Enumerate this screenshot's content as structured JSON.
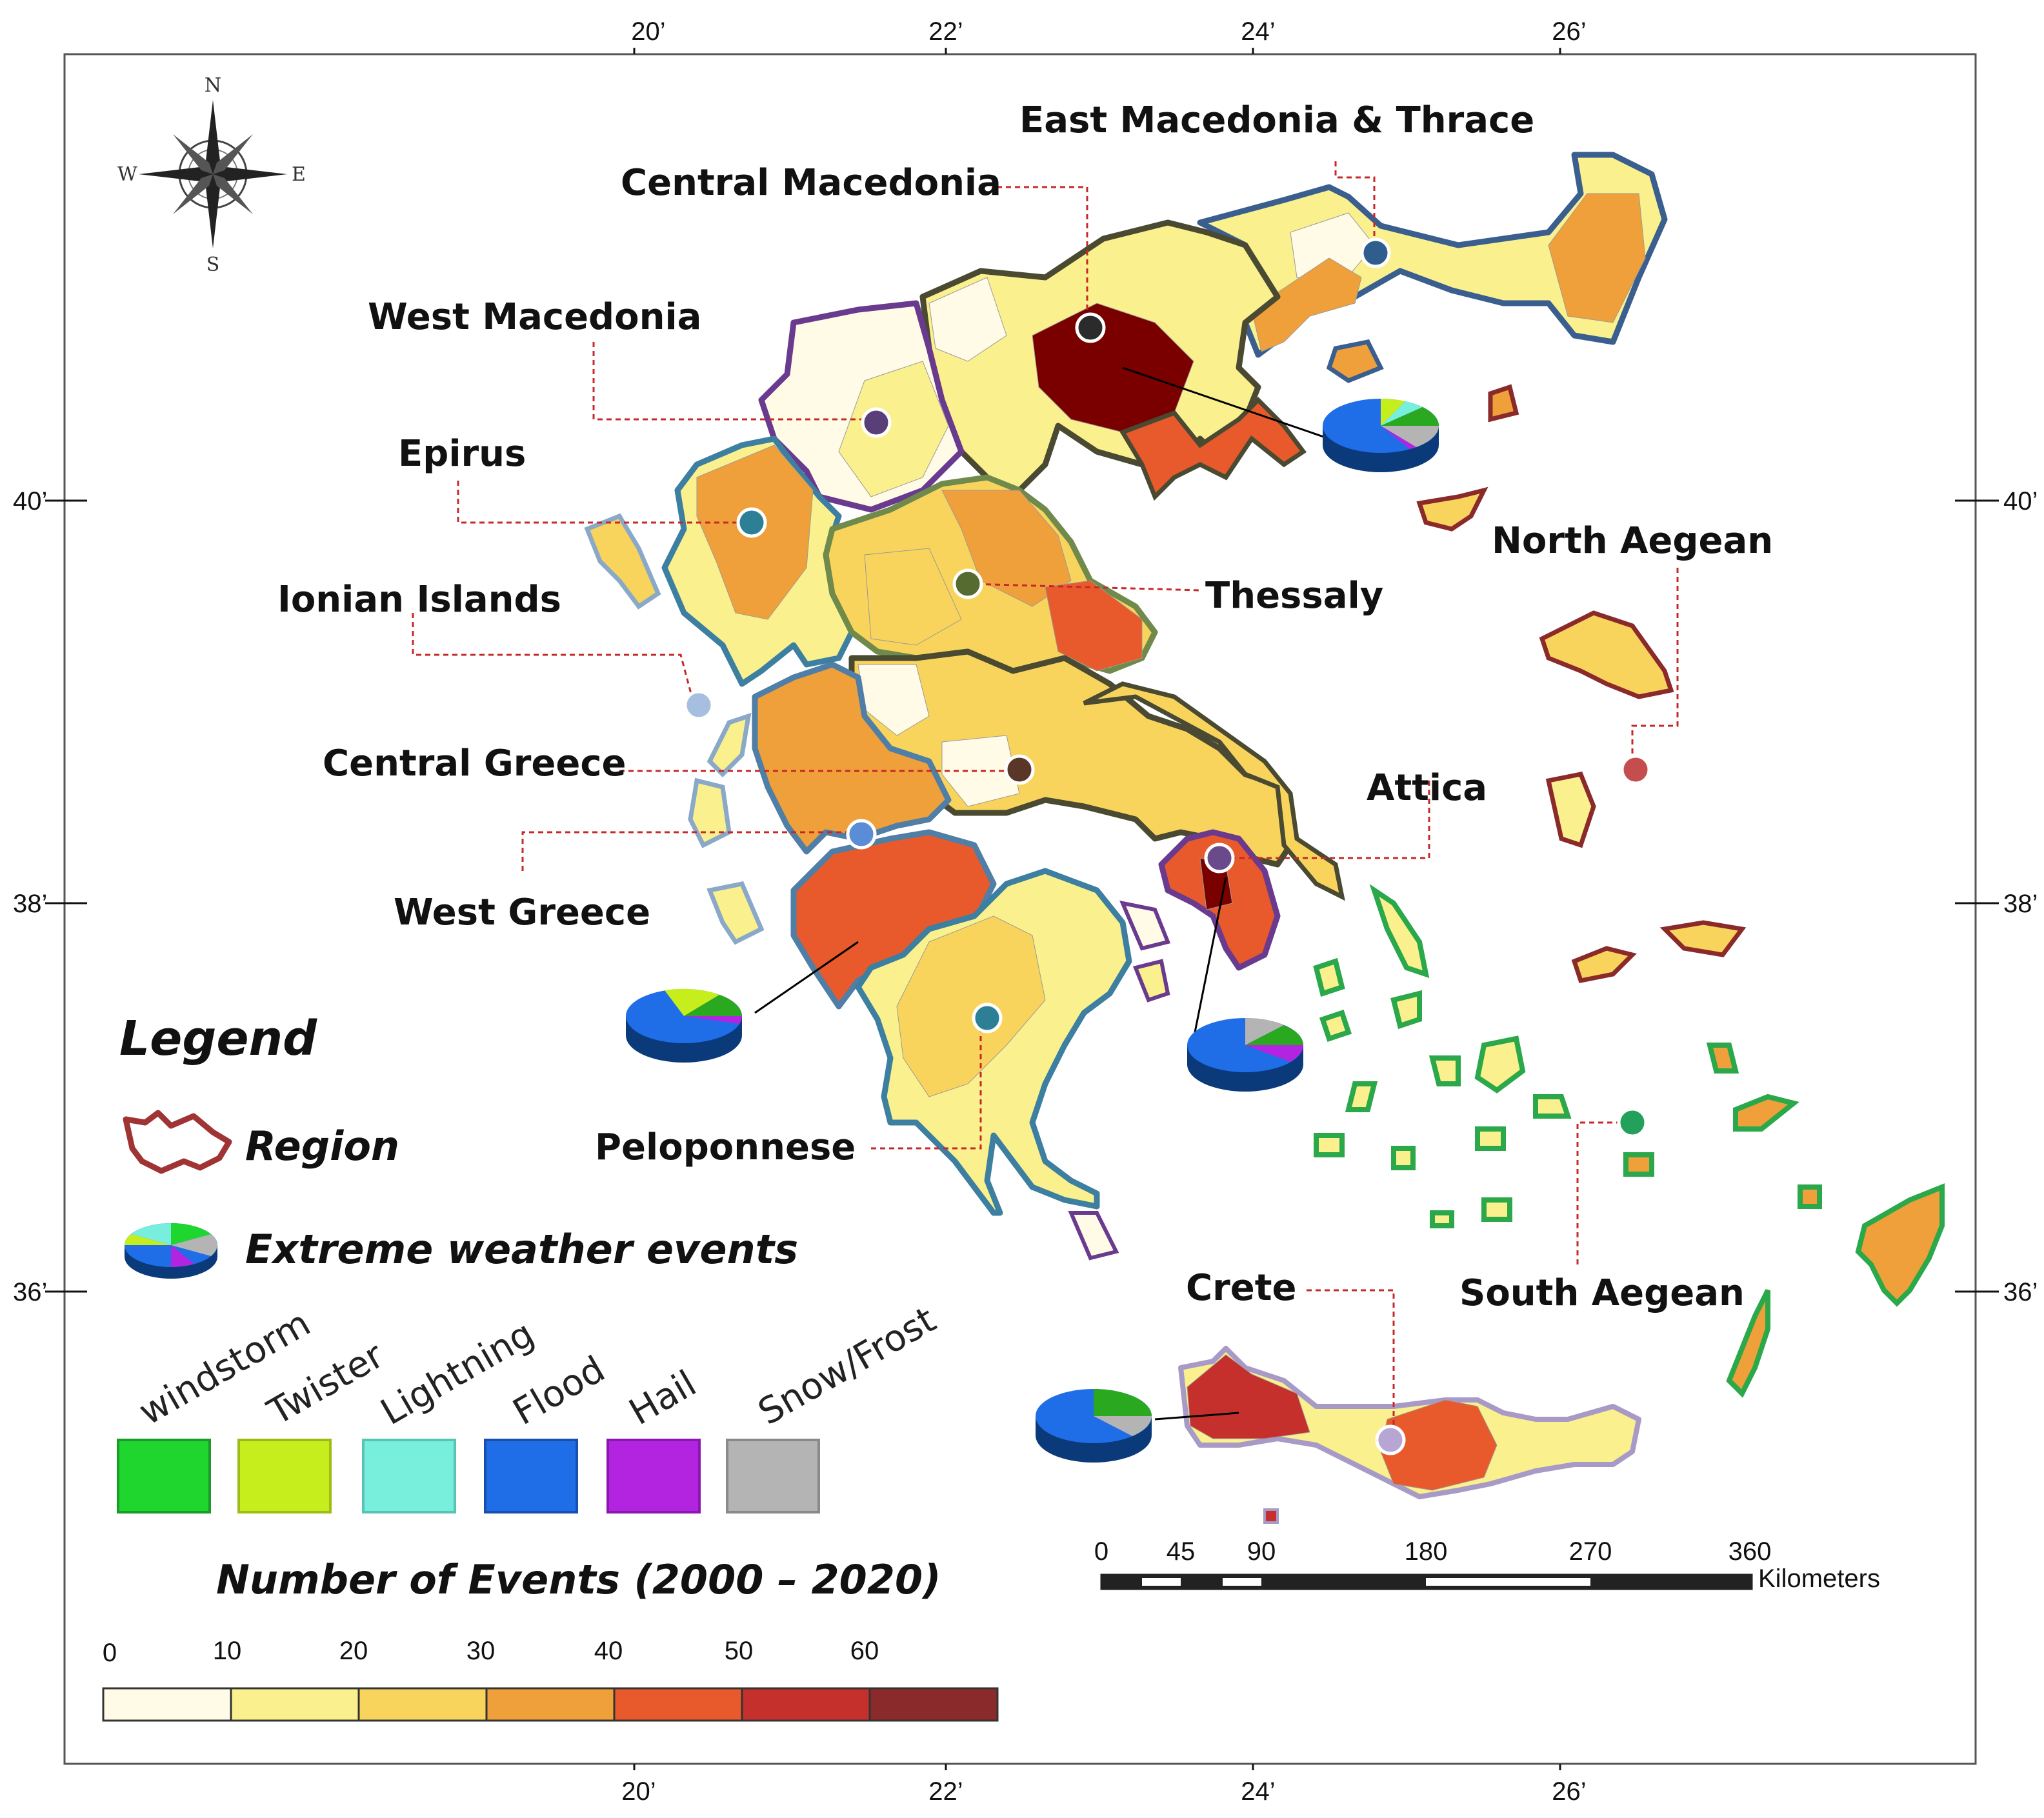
{
  "graticule": {
    "top_labels": [
      "20’",
      "22’",
      "24’",
      "26’"
    ],
    "bottom_labels": [
      "20’",
      "22’",
      "24’",
      "26’"
    ],
    "left_labels": [
      "40’",
      "38’",
      "36’"
    ],
    "right_labels": [
      "40’",
      "38’",
      "36’"
    ]
  },
  "compass": {
    "n": "N",
    "s": "S",
    "e": "E",
    "w": "W"
  },
  "regions": {
    "east_macedonia_thrace": "East Macedonia & Thrace",
    "central_macedonia": "Central Macedonia",
    "west_macedonia": "West Macedonia",
    "epirus": "Epirus",
    "ionian_islands": "Ionian Islands",
    "thessaly": "Thessaly",
    "north_aegean": "North Aegean",
    "central_greece": "Central Greece",
    "attica": "Attica",
    "west_greece": "West Greece",
    "peloponnese": "Peloponnese",
    "crete": "Crete",
    "south_aegean": "South Aegean"
  },
  "legend": {
    "title": "Legend",
    "region_label": "Region",
    "events_label": "Extreme weather events",
    "event_types": [
      {
        "label": "windstorm",
        "color": "#1ed62e"
      },
      {
        "label": "Twister",
        "color": "#c6ee1d"
      },
      {
        "label": "Lightning",
        "color": "#78eedc"
      },
      {
        "label": "Flood",
        "color": "#1f6ee8"
      },
      {
        "label": "Hail",
        "color": "#b224e0"
      },
      {
        "label": "Snow/Frost",
        "color": "#b4b4b4"
      }
    ]
  },
  "color_scale": {
    "title": "Number of Events (2000 – 2020)",
    "ticks": [
      "0",
      "10",
      "20",
      "30",
      "40",
      "50",
      "60"
    ],
    "colors": [
      "#fffbe7",
      "#fbf08e",
      "#f9d45c",
      "#f0a03a",
      "#e85a2b",
      "#c5302c",
      "#8b2a2a"
    ]
  },
  "scale_bar": {
    "ticks": [
      "0",
      "45",
      "90",
      "180",
      "270",
      "360"
    ],
    "unit": "Kilometers"
  }
}
